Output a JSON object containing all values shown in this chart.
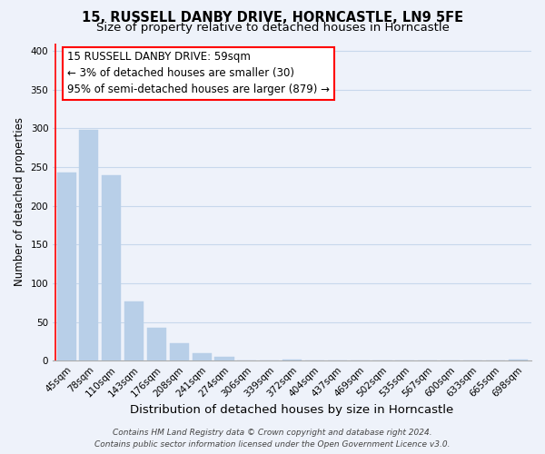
{
  "title": "15, RUSSELL DANBY DRIVE, HORNCASTLE, LN9 5FE",
  "subtitle": "Size of property relative to detached houses in Horncastle",
  "xlabel": "Distribution of detached houses by size in Horncastle",
  "ylabel": "Number of detached properties",
  "bar_labels": [
    "45sqm",
    "78sqm",
    "110sqm",
    "143sqm",
    "176sqm",
    "208sqm",
    "241sqm",
    "274sqm",
    "306sqm",
    "339sqm",
    "372sqm",
    "404sqm",
    "437sqm",
    "469sqm",
    "502sqm",
    "535sqm",
    "567sqm",
    "600sqm",
    "633sqm",
    "665sqm",
    "698sqm"
  ],
  "bar_values": [
    243,
    298,
    240,
    77,
    43,
    23,
    10,
    5,
    0,
    0,
    2,
    0,
    0,
    0,
    0,
    0,
    0,
    0,
    0,
    0,
    2
  ],
  "bar_color": "#b8cfe8",
  "annotation_line1": "15 RUSSELL DANBY DRIVE: 59sqm",
  "annotation_line2": "← 3% of detached houses are smaller (30)",
  "annotation_line3": "95% of semi-detached houses are larger (879) →",
  "ylim": [
    0,
    410
  ],
  "yticks": [
    0,
    50,
    100,
    150,
    200,
    250,
    300,
    350,
    400
  ],
  "grid_color": "#c8d8ec",
  "bg_color": "#eef2fa",
  "footer_line1": "Contains HM Land Registry data © Crown copyright and database right 2024.",
  "footer_line2": "Contains public sector information licensed under the Open Government Licence v3.0.",
  "title_fontsize": 10.5,
  "subtitle_fontsize": 9.5,
  "xlabel_fontsize": 9.5,
  "ylabel_fontsize": 8.5,
  "tick_fontsize": 7.5,
  "annotation_fontsize": 8.5,
  "footer_fontsize": 6.5
}
